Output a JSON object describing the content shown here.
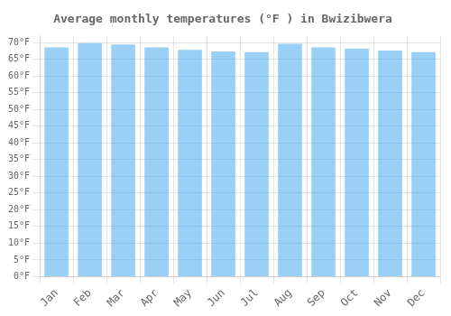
{
  "chart_data": {
    "type": "bar",
    "title": "Average monthly temperatures (°F ) in Bwizibwera",
    "categories": [
      "Jan",
      "Feb",
      "Mar",
      "Apr",
      "May",
      "Jun",
      "Jul",
      "Aug",
      "Sep",
      "Oct",
      "Nov",
      "Dec"
    ],
    "values": [
      68.5,
      69.8,
      69.4,
      68.5,
      67.8,
      67.3,
      67.1,
      69.6,
      68.5,
      68.2,
      67.6,
      67.1
    ],
    "ylim": [
      0,
      72
    ],
    "yticks": [
      {
        "value": 0,
        "label": "0°F"
      },
      {
        "value": 5,
        "label": "5°F"
      },
      {
        "value": 10,
        "label": "10°F"
      },
      {
        "value": 15,
        "label": "15°F"
      },
      {
        "value": 20,
        "label": "20°F"
      },
      {
        "value": 25,
        "label": "25°F"
      },
      {
        "value": 30,
        "label": "30°F"
      },
      {
        "value": 35,
        "label": "35°F"
      },
      {
        "value": 40,
        "label": "40°F"
      },
      {
        "value": 45,
        "label": "45°F"
      },
      {
        "value": 50,
        "label": "50°F"
      },
      {
        "value": 55,
        "label": "55°F"
      },
      {
        "value": 60,
        "label": "60°F"
      },
      {
        "value": 65,
        "label": "65°F"
      },
      {
        "value": 70,
        "label": "70°F"
      }
    ],
    "grid": true
  }
}
